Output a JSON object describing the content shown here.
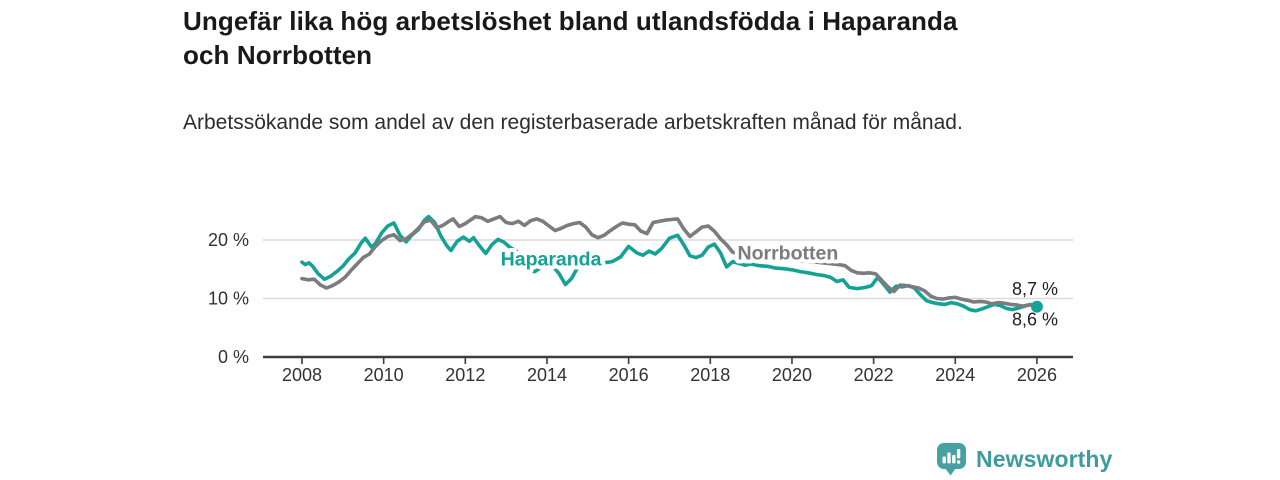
{
  "header": {
    "title": "Ungefär lika hög arbetslöshet bland utlandsfödda i Haparanda och Norrbotten",
    "subtitle": "Arbetssökande som andel av den registerbaserade arbetskraften månad för månad."
  },
  "footer": {
    "brand": "Newsworthy",
    "brand_color": "#3e9c9e",
    "icon": "bar-chart-speech-bubble-icon",
    "icon_color": "#47a0a1"
  },
  "chart_data": {
    "type": "line",
    "title": "Ungefär lika hög arbetslöshet bland utlandsfödda i Haparanda och Norrbotten",
    "subtitle": "Arbetssökande som andel av den registerbaserade arbetskraften månad för månad.",
    "xlabel": "",
    "ylabel": "",
    "x_unit": "year (monthly observations)",
    "xlim": [
      2007.3,
      2026.9
    ],
    "ylim": [
      0,
      25
    ],
    "grid": "horizontal",
    "x_ticks": [
      2008,
      2010,
      2012,
      2014,
      2016,
      2018,
      2020,
      2022,
      2024,
      2026
    ],
    "y_ticks": [
      {
        "value": 0,
        "label": "0 %"
      },
      {
        "value": 10,
        "label": "10 %"
      },
      {
        "value": 20,
        "label": "20 %"
      }
    ],
    "colors": {
      "gridline": "#dadada",
      "axis": "#3d3d3d",
      "axis_text": "#333333",
      "end_label_text": "#1f1f1f"
    },
    "legend_position": "inline-labels-on-lines",
    "series": [
      {
        "name": "Haparanda",
        "color": "#15a296",
        "end_label": "8,6 %",
        "end_label_side": "below",
        "end_value": 8.6,
        "end_dot": true,
        "label_at": [
          2014.1,
          15.6
        ],
        "points": [
          [
            2008.0,
            16.2
          ],
          [
            2008.08,
            15.8
          ],
          [
            2008.17,
            16.1
          ],
          [
            2008.25,
            15.6
          ],
          [
            2008.4,
            14.2
          ],
          [
            2008.55,
            13.3
          ],
          [
            2008.7,
            13.8
          ],
          [
            2008.85,
            14.6
          ],
          [
            2009.0,
            15.5
          ],
          [
            2009.15,
            16.8
          ],
          [
            2009.3,
            17.8
          ],
          [
            2009.45,
            19.5
          ],
          [
            2009.55,
            20.3
          ],
          [
            2009.7,
            18.8
          ],
          [
            2009.8,
            19.4
          ],
          [
            2009.95,
            21.2
          ],
          [
            2010.1,
            22.4
          ],
          [
            2010.25,
            22.9
          ],
          [
            2010.4,
            20.8
          ],
          [
            2010.55,
            19.7
          ],
          [
            2010.7,
            20.9
          ],
          [
            2010.85,
            21.8
          ],
          [
            2011.0,
            23.4
          ],
          [
            2011.1,
            24.0
          ],
          [
            2011.25,
            23.0
          ],
          [
            2011.4,
            20.7
          ],
          [
            2011.55,
            19.0
          ],
          [
            2011.65,
            18.2
          ],
          [
            2011.8,
            19.8
          ],
          [
            2011.95,
            20.5
          ],
          [
            2012.1,
            19.8
          ],
          [
            2012.2,
            20.4
          ],
          [
            2012.35,
            19.0
          ],
          [
            2012.5,
            17.7
          ],
          [
            2012.65,
            19.2
          ],
          [
            2012.8,
            20.1
          ],
          [
            2012.95,
            19.6
          ],
          [
            2013.1,
            18.7
          ],
          [
            2013.25,
            18.1
          ],
          [
            2013.4,
            16.5
          ],
          [
            2013.55,
            14.9
          ],
          [
            2013.7,
            14.6
          ],
          [
            2013.85,
            15.3
          ],
          [
            2014.0,
            15.9
          ],
          [
            2014.15,
            15.5
          ],
          [
            2014.3,
            14.2
          ],
          [
            2014.45,
            12.4
          ],
          [
            2014.6,
            13.4
          ],
          [
            2014.75,
            15.3
          ],
          [
            2014.9,
            15.7
          ],
          [
            2015.05,
            16.0
          ],
          [
            2015.2,
            15.8
          ],
          [
            2015.4,
            16.1
          ],
          [
            2015.6,
            16.3
          ],
          [
            2015.8,
            17.1
          ],
          [
            2016.0,
            18.9
          ],
          [
            2016.2,
            17.8
          ],
          [
            2016.35,
            17.4
          ],
          [
            2016.5,
            18.1
          ],
          [
            2016.65,
            17.6
          ],
          [
            2016.8,
            18.5
          ],
          [
            2017.0,
            20.3
          ],
          [
            2017.2,
            20.8
          ],
          [
            2017.35,
            19.2
          ],
          [
            2017.5,
            17.3
          ],
          [
            2017.65,
            17.0
          ],
          [
            2017.8,
            17.4
          ],
          [
            2017.95,
            18.8
          ],
          [
            2018.1,
            19.3
          ],
          [
            2018.25,
            17.8
          ],
          [
            2018.4,
            15.4
          ],
          [
            2018.55,
            16.3
          ],
          [
            2018.7,
            16.0
          ],
          [
            2018.85,
            15.7
          ],
          [
            2019.0,
            15.9
          ],
          [
            2019.2,
            15.6
          ],
          [
            2019.4,
            15.5
          ],
          [
            2019.6,
            15.2
          ],
          [
            2019.8,
            15.1
          ],
          [
            2020.0,
            14.9
          ],
          [
            2020.2,
            14.6
          ],
          [
            2020.4,
            14.4
          ],
          [
            2020.6,
            14.1
          ],
          [
            2020.8,
            13.9
          ],
          [
            2020.95,
            13.6
          ],
          [
            2021.1,
            12.9
          ],
          [
            2021.25,
            13.2
          ],
          [
            2021.4,
            11.9
          ],
          [
            2021.6,
            11.7
          ],
          [
            2021.8,
            11.9
          ],
          [
            2021.95,
            12.2
          ],
          [
            2022.1,
            13.6
          ],
          [
            2022.25,
            12.4
          ],
          [
            2022.4,
            11.1
          ],
          [
            2022.55,
            12.1
          ],
          [
            2022.7,
            12.0
          ],
          [
            2022.85,
            12.2
          ],
          [
            2023.0,
            11.8
          ],
          [
            2023.15,
            10.6
          ],
          [
            2023.3,
            9.6
          ],
          [
            2023.45,
            9.3
          ],
          [
            2023.6,
            9.1
          ],
          [
            2023.75,
            9.0
          ],
          [
            2023.9,
            9.3
          ],
          [
            2024.05,
            9.1
          ],
          [
            2024.2,
            8.7
          ],
          [
            2024.35,
            8.1
          ],
          [
            2024.5,
            7.9
          ],
          [
            2024.65,
            8.2
          ],
          [
            2024.8,
            8.6
          ],
          [
            2024.95,
            9.0
          ],
          [
            2025.1,
            8.8
          ],
          [
            2025.25,
            8.3
          ],
          [
            2025.4,
            8.1
          ],
          [
            2025.55,
            8.4
          ],
          [
            2025.7,
            8.7
          ],
          [
            2025.85,
            9.0
          ],
          [
            2026.0,
            8.6
          ]
        ]
      },
      {
        "name": "Norrbotten",
        "color": "#7b7b80",
        "end_label": "8,7 %",
        "end_label_side": "above",
        "end_value": 8.7,
        "end_dot": false,
        "label_at": [
          2019.9,
          16.7
        ],
        "points": [
          [
            2008.0,
            13.4
          ],
          [
            2008.15,
            13.2
          ],
          [
            2008.3,
            13.3
          ],
          [
            2008.45,
            12.3
          ],
          [
            2008.6,
            11.8
          ],
          [
            2008.75,
            12.2
          ],
          [
            2008.9,
            12.8
          ],
          [
            2009.05,
            13.6
          ],
          [
            2009.2,
            14.8
          ],
          [
            2009.35,
            15.9
          ],
          [
            2009.5,
            17.0
          ],
          [
            2009.65,
            17.6
          ],
          [
            2009.8,
            18.9
          ],
          [
            2009.95,
            19.9
          ],
          [
            2010.1,
            20.6
          ],
          [
            2010.25,
            20.9
          ],
          [
            2010.4,
            19.9
          ],
          [
            2010.55,
            20.2
          ],
          [
            2010.7,
            21.0
          ],
          [
            2010.85,
            22.0
          ],
          [
            2011.0,
            23.1
          ],
          [
            2011.15,
            23.4
          ],
          [
            2011.3,
            22.1
          ],
          [
            2011.45,
            22.5
          ],
          [
            2011.6,
            23.2
          ],
          [
            2011.7,
            23.6
          ],
          [
            2011.85,
            22.3
          ],
          [
            2012.0,
            22.8
          ],
          [
            2012.1,
            23.3
          ],
          [
            2012.25,
            24.0
          ],
          [
            2012.4,
            23.8
          ],
          [
            2012.55,
            23.2
          ],
          [
            2012.7,
            23.6
          ],
          [
            2012.85,
            24.0
          ],
          [
            2013.0,
            23.0
          ],
          [
            2013.15,
            22.8
          ],
          [
            2013.3,
            23.2
          ],
          [
            2013.45,
            22.5
          ],
          [
            2013.6,
            23.3
          ],
          [
            2013.75,
            23.6
          ],
          [
            2013.9,
            23.2
          ],
          [
            2014.05,
            22.4
          ],
          [
            2014.2,
            21.6
          ],
          [
            2014.35,
            22.0
          ],
          [
            2014.5,
            22.5
          ],
          [
            2014.65,
            22.8
          ],
          [
            2014.8,
            23.0
          ],
          [
            2014.95,
            22.2
          ],
          [
            2015.1,
            20.9
          ],
          [
            2015.25,
            20.4
          ],
          [
            2015.4,
            20.8
          ],
          [
            2015.55,
            21.6
          ],
          [
            2015.7,
            22.3
          ],
          [
            2015.85,
            22.9
          ],
          [
            2016.0,
            22.7
          ],
          [
            2016.15,
            22.6
          ],
          [
            2016.3,
            21.5
          ],
          [
            2016.45,
            21.1
          ],
          [
            2016.6,
            23.0
          ],
          [
            2016.75,
            23.2
          ],
          [
            2016.9,
            23.4
          ],
          [
            2017.05,
            23.5
          ],
          [
            2017.2,
            23.6
          ],
          [
            2017.35,
            21.9
          ],
          [
            2017.5,
            20.6
          ],
          [
            2017.65,
            21.4
          ],
          [
            2017.8,
            22.2
          ],
          [
            2017.95,
            22.4
          ],
          [
            2018.1,
            21.5
          ],
          [
            2018.25,
            20.2
          ],
          [
            2018.4,
            19.2
          ],
          [
            2018.55,
            17.9
          ],
          [
            2018.8,
            17.5
          ],
          [
            2019.1,
            17.2
          ],
          [
            2019.4,
            17.0
          ],
          [
            2019.7,
            16.8
          ],
          [
            2020.0,
            16.6
          ],
          [
            2020.3,
            16.4
          ],
          [
            2020.6,
            16.2
          ],
          [
            2020.9,
            16.0
          ],
          [
            2021.15,
            15.8
          ],
          [
            2021.3,
            15.6
          ],
          [
            2021.45,
            14.8
          ],
          [
            2021.6,
            14.4
          ],
          [
            2021.75,
            14.3
          ],
          [
            2021.9,
            14.4
          ],
          [
            2022.05,
            14.2
          ],
          [
            2022.2,
            13.1
          ],
          [
            2022.35,
            12.0
          ],
          [
            2022.5,
            11.2
          ],
          [
            2022.65,
            12.3
          ],
          [
            2022.8,
            12.2
          ],
          [
            2022.95,
            12.0
          ],
          [
            2023.1,
            11.8
          ],
          [
            2023.25,
            11.3
          ],
          [
            2023.4,
            10.4
          ],
          [
            2023.55,
            10.0
          ],
          [
            2023.7,
            9.9
          ],
          [
            2023.85,
            10.1
          ],
          [
            2024.0,
            10.2
          ],
          [
            2024.15,
            9.9
          ],
          [
            2024.3,
            9.7
          ],
          [
            2024.45,
            9.4
          ],
          [
            2024.6,
            9.5
          ],
          [
            2024.75,
            9.4
          ],
          [
            2024.9,
            9.1
          ],
          [
            2025.05,
            9.3
          ],
          [
            2025.2,
            9.2
          ],
          [
            2025.35,
            9.0
          ],
          [
            2025.5,
            8.9
          ],
          [
            2025.65,
            8.7
          ],
          [
            2025.8,
            8.9
          ],
          [
            2026.0,
            8.7
          ]
        ]
      }
    ]
  }
}
